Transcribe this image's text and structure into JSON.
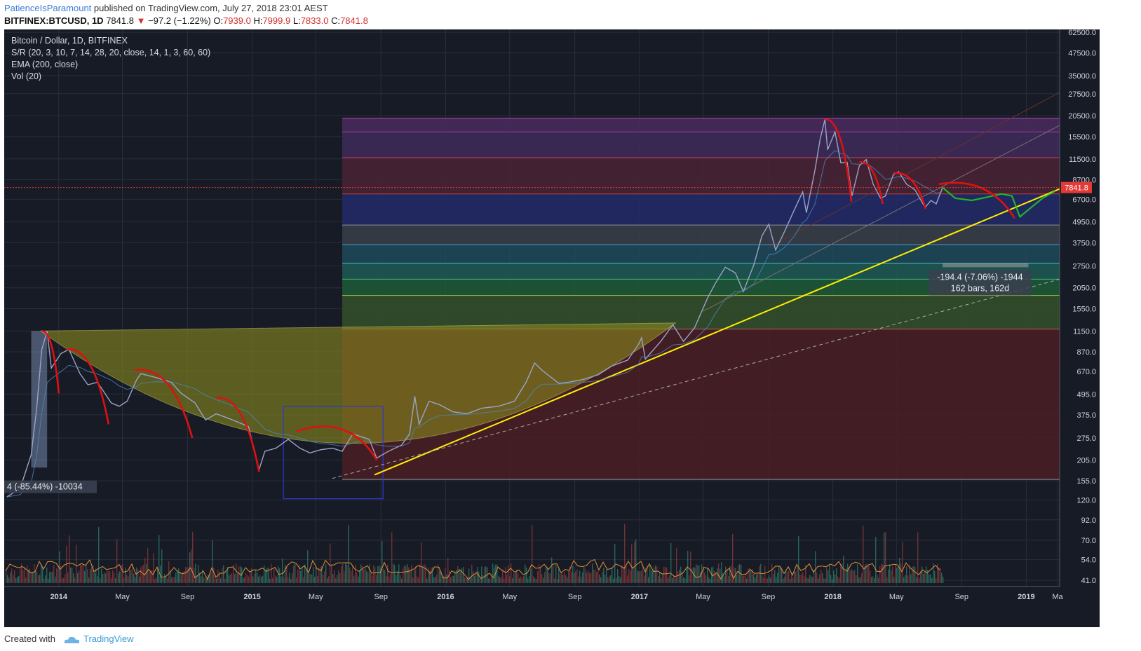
{
  "header": {
    "username": "PatienceIsParamount",
    "published_text": "published on TradingView.com, July 27, 2018 23:01 AEST"
  },
  "symbol_line": {
    "symbol": "BITFINEX:BTCUSD, 1D",
    "last": "7841.8",
    "change": "−97.2 (−1.22%)",
    "o_label": "O:",
    "o_value": "7939.0",
    "h_label": "H:",
    "h_value": "7999.9",
    "l_label": "L:",
    "l_value": "7833.0",
    "c_label": "C:",
    "c_value": "7841.8"
  },
  "legend": {
    "title": "Bitcoin / Dollar, 1D, BITFINEX",
    "sr": "S/R (20, 3, 10, 7, 14, 28, 20, close, 14, 1, 3, 60, 60)",
    "ema": "EMA (200, close)",
    "vol": "Vol (20)"
  },
  "measure_boxes": {
    "left_text": "4 (-85.44%) -10034",
    "right_text_1": "-194.4 (-7.06%) -1944",
    "right_text_2": "162 bars, 162d"
  },
  "footer": {
    "created_with": "Created with",
    "brand": "TradingView"
  },
  "colors": {
    "background": "#171b26",
    "bull": "#26a69a",
    "bear": "#ef5350",
    "trendline": "#ffee00",
    "arc": "#e01010",
    "projection": "#22cc22",
    "price_marker": "#e53935"
  },
  "chart_data": {
    "type": "line",
    "scale": "log",
    "price_axis_labels": [
      "62500.0",
      "47500.0",
      "35000.0",
      "27500.0",
      "20500.0",
      "15500.0",
      "11500.0",
      "8700.0",
      "6700.0",
      "4950.0",
      "3750.0",
      "2750.0",
      "2050.0",
      "1550.0",
      "1150.0",
      "870.0",
      "670.0",
      "495.0",
      "375.0",
      "275.0",
      "205.0",
      "155.0",
      "120.0",
      "92.0",
      "70.0",
      "54.0",
      "41.0"
    ],
    "price_axis_values": [
      62500,
      47500,
      35000,
      27500,
      20500,
      15500,
      11500,
      8700,
      6700,
      4950,
      3750,
      2750,
      2050,
      1550,
      1150,
      870,
      670,
      495,
      375,
      275,
      205,
      155,
      120,
      92,
      70,
      54,
      41
    ],
    "time_axis_labels": [
      "2014",
      "May",
      "Sep",
      "2015",
      "May",
      "Sep",
      "2016",
      "May",
      "Sep",
      "2017",
      "May",
      "Sep",
      "2018",
      "May",
      "Sep",
      "2019",
      "Ma"
    ],
    "time_axis_dates": [
      "2014-01-01",
      "2014-05-01",
      "2014-09-01",
      "2015-01-01",
      "2015-05-01",
      "2015-09-01",
      "2016-01-01",
      "2016-05-01",
      "2016-09-01",
      "2017-01-01",
      "2017-05-01",
      "2017-09-01",
      "2018-01-01",
      "2018-05-01",
      "2018-09-01",
      "2019-01-01",
      "2019-03-01"
    ],
    "last_price": 7841.8,
    "last_price_label": "7841.8",
    "x_range": [
      "2013-09-20",
      "2019-03-05"
    ],
    "y_range": [
      140,
      65000
    ],
    "series": [
      {
        "x": [
          "2013-09-25",
          "2013-10-20",
          "2013-11-10",
          "2013-11-20",
          "2013-11-30",
          "2013-12-10",
          "2013-12-18",
          "2014-01-05",
          "2014-01-20",
          "2014-02-10",
          "2014-02-25",
          "2014-03-15",
          "2014-04-10",
          "2014-04-25",
          "2014-05-10",
          "2014-05-28",
          "2014-06-05",
          "2014-07-01",
          "2014-08-01",
          "2014-08-20",
          "2014-09-15",
          "2014-10-05",
          "2014-10-25",
          "2014-11-15",
          "2014-12-05",
          "2014-12-25",
          "2015-01-14",
          "2015-01-25",
          "2015-02-15",
          "2015-03-10",
          "2015-04-01",
          "2015-04-20",
          "2015-05-10",
          "2015-06-01",
          "2015-06-20",
          "2015-07-10",
          "2015-07-25",
          "2015-08-10",
          "2015-08-24",
          "2015-09-15",
          "2015-10-10",
          "2015-10-25",
          "2015-11-04",
          "2015-11-12",
          "2015-12-01",
          "2015-12-20",
          "2016-01-15",
          "2016-02-10",
          "2016-03-10",
          "2016-04-10",
          "2016-05-10",
          "2016-06-01",
          "2016-06-17",
          "2016-07-01",
          "2016-08-02",
          "2016-08-20",
          "2016-09-15",
          "2016-10-15",
          "2016-11-10",
          "2016-12-10",
          "2016-12-30",
          "2017-01-05",
          "2017-01-12",
          "2017-02-10",
          "2017-03-05",
          "2017-03-25",
          "2017-04-15",
          "2017-05-10",
          "2017-05-25",
          "2017-06-12",
          "2017-07-01",
          "2017-07-16",
          "2017-08-05",
          "2017-08-20",
          "2017-09-02",
          "2017-09-15",
          "2017-10-01",
          "2017-10-20",
          "2017-11-05",
          "2017-11-12",
          "2017-11-28",
          "2017-12-08",
          "2017-12-17",
          "2017-12-22",
          "2018-01-05",
          "2018-01-16",
          "2018-01-28",
          "2018-02-06",
          "2018-02-20",
          "2018-03-05",
          "2018-03-18",
          "2018-04-01",
          "2018-04-10",
          "2018-04-25",
          "2018-05-05",
          "2018-05-20",
          "2018-06-05",
          "2018-06-24",
          "2018-07-05",
          "2018-07-15",
          "2018-07-27"
        ],
        "y": [
          125,
          140,
          220,
          400,
          900,
          1150,
          700,
          850,
          900,
          650,
          560,
          580,
          440,
          420,
          450,
          600,
          650,
          620,
          580,
          500,
          440,
          350,
          380,
          360,
          340,
          320,
          180,
          230,
          240,
          270,
          240,
          225,
          235,
          240,
          230,
          290,
          280,
          270,
          210,
          230,
          250,
          290,
          480,
          330,
          450,
          430,
          390,
          380,
          410,
          420,
          450,
          580,
          750,
          680,
          570,
          580,
          600,
          640,
          720,
          780,
          960,
          1050,
          790,
          1000,
          1250,
          1000,
          1200,
          1800,
          2200,
          2700,
          2500,
          1950,
          2800,
          4100,
          4800,
          3400,
          4300,
          5800,
          7400,
          5600,
          9800,
          15000,
          19500,
          13000,
          16500,
          10900,
          11000,
          7000,
          10500,
          11400,
          8200,
          6800,
          7000,
          9300,
          9700,
          8200,
          7600,
          6000,
          6600,
          6300,
          7841.8
        ]
      },
      {
        "x": [
          "2018-07-27",
          "2018-08-20",
          "2018-09-20",
          "2018-10-20",
          "2018-11-15",
          "2018-12-05",
          "2018-12-20",
          "2019-01-10",
          "2019-02-01",
          "2019-02-25"
        ],
        "y": [
          7841.8,
          6800,
          6600,
          6900,
          7200,
          7000,
          5300,
          6000,
          6800,
          7500
        ]
      }
    ]
  }
}
